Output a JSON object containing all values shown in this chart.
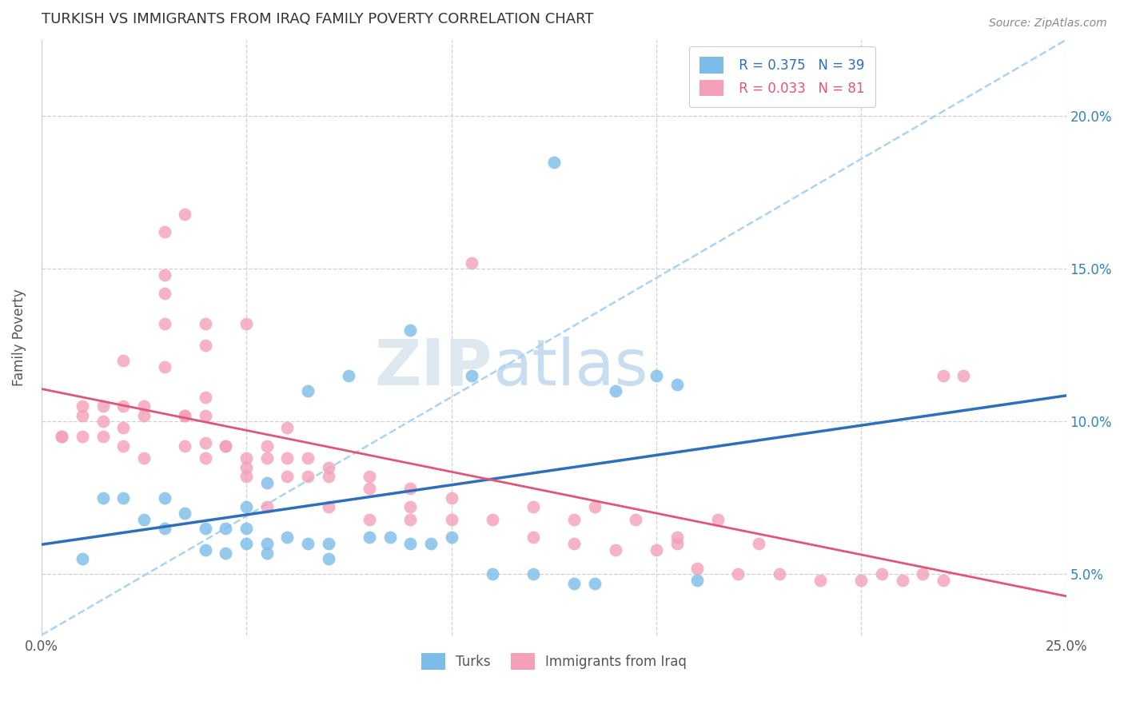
{
  "title": "TURKISH VS IMMIGRANTS FROM IRAQ FAMILY POVERTY CORRELATION CHART",
  "source": "Source: ZipAtlas.com",
  "ylabel": "Family Poverty",
  "ylabel_right_ticks": [
    "5.0%",
    "10.0%",
    "15.0%",
    "20.0%"
  ],
  "ylabel_right_values": [
    0.05,
    0.1,
    0.15,
    0.2
  ],
  "xlim": [
    0.0,
    0.25
  ],
  "ylim": [
    0.03,
    0.225
  ],
  "color_blue": "#7bbde8",
  "color_pink": "#f4a0b8",
  "color_line_blue": "#2e6fbd",
  "color_line_pink": "#e0567a",
  "color_line_dashed": "#aad4f0",
  "watermark_zip": "ZIP",
  "watermark_atlas": "atlas",
  "turks_x": [
    0.01,
    0.015,
    0.02,
    0.025,
    0.03,
    0.03,
    0.035,
    0.04,
    0.04,
    0.045,
    0.045,
    0.05,
    0.05,
    0.05,
    0.055,
    0.055,
    0.055,
    0.06,
    0.065,
    0.065,
    0.07,
    0.07,
    0.075,
    0.08,
    0.085,
    0.09,
    0.09,
    0.095,
    0.1,
    0.105,
    0.11,
    0.12,
    0.125,
    0.13,
    0.135,
    0.14,
    0.15,
    0.155,
    0.16
  ],
  "turks_y": [
    0.055,
    0.075,
    0.075,
    0.068,
    0.065,
    0.075,
    0.07,
    0.058,
    0.065,
    0.057,
    0.065,
    0.06,
    0.065,
    0.072,
    0.057,
    0.06,
    0.08,
    0.062,
    0.06,
    0.11,
    0.055,
    0.06,
    0.115,
    0.062,
    0.062,
    0.06,
    0.13,
    0.06,
    0.062,
    0.115,
    0.05,
    0.05,
    0.185,
    0.047,
    0.047,
    0.11,
    0.115,
    0.112,
    0.048
  ],
  "iraq_x": [
    0.005,
    0.01,
    0.01,
    0.015,
    0.015,
    0.02,
    0.02,
    0.02,
    0.025,
    0.025,
    0.03,
    0.03,
    0.03,
    0.03,
    0.035,
    0.035,
    0.035,
    0.04,
    0.04,
    0.04,
    0.04,
    0.04,
    0.045,
    0.05,
    0.05,
    0.05,
    0.055,
    0.055,
    0.06,
    0.06,
    0.065,
    0.07,
    0.07,
    0.08,
    0.08,
    0.09,
    0.09,
    0.1,
    0.1,
    0.105,
    0.11,
    0.12,
    0.12,
    0.13,
    0.13,
    0.135,
    0.14,
    0.145,
    0.15,
    0.155,
    0.155,
    0.16,
    0.165,
    0.17,
    0.175,
    0.18,
    0.19,
    0.2,
    0.205,
    0.21,
    0.215,
    0.22,
    0.225,
    0.005,
    0.01,
    0.015,
    0.02,
    0.025,
    0.03,
    0.035,
    0.04,
    0.045,
    0.05,
    0.055,
    0.06,
    0.065,
    0.07,
    0.08,
    0.09,
    0.22
  ],
  "iraq_y": [
    0.095,
    0.095,
    0.105,
    0.095,
    0.105,
    0.092,
    0.098,
    0.105,
    0.088,
    0.105,
    0.118,
    0.132,
    0.142,
    0.162,
    0.092,
    0.102,
    0.168,
    0.088,
    0.093,
    0.102,
    0.108,
    0.132,
    0.092,
    0.082,
    0.088,
    0.132,
    0.072,
    0.092,
    0.082,
    0.088,
    0.082,
    0.072,
    0.082,
    0.068,
    0.078,
    0.068,
    0.078,
    0.068,
    0.075,
    0.152,
    0.068,
    0.062,
    0.072,
    0.06,
    0.068,
    0.072,
    0.058,
    0.068,
    0.058,
    0.062,
    0.06,
    0.052,
    0.068,
    0.05,
    0.06,
    0.05,
    0.048,
    0.048,
    0.05,
    0.048,
    0.05,
    0.048,
    0.115,
    0.095,
    0.102,
    0.1,
    0.12,
    0.102,
    0.148,
    0.102,
    0.125,
    0.092,
    0.085,
    0.088,
    0.098,
    0.088,
    0.085,
    0.082,
    0.072,
    0.115
  ]
}
